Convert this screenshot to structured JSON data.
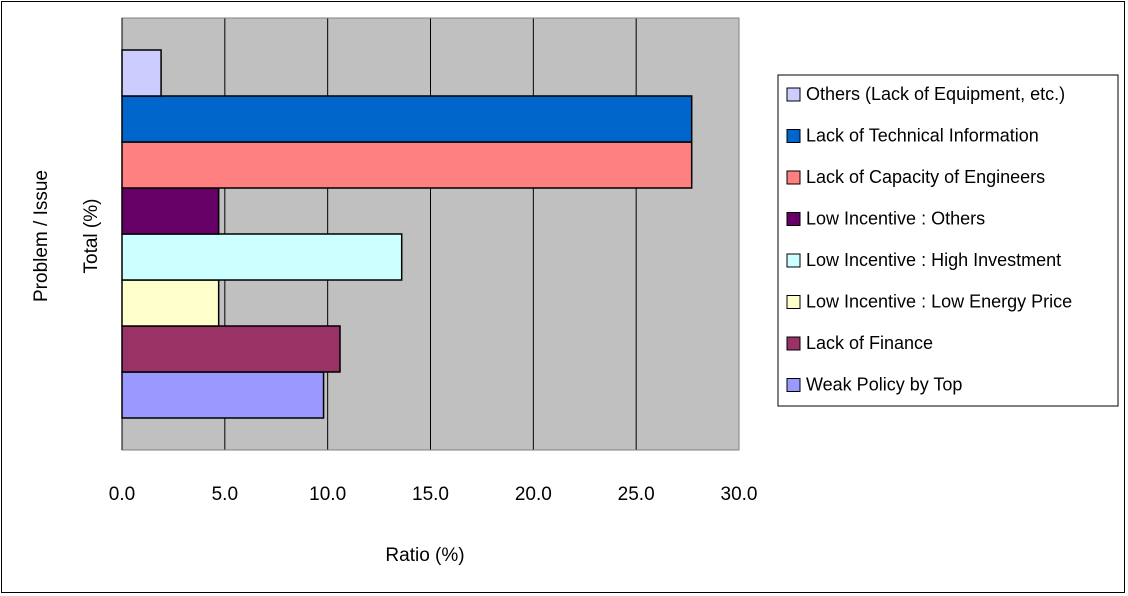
{
  "chart_data": {
    "type": "bar",
    "orientation": "horizontal",
    "categories": [
      "Total (%)"
    ],
    "ylabel": "Problem / Issue",
    "xlabel": "Ratio (%)",
    "xlim": [
      0,
      30
    ],
    "xticks": [
      "0.0",
      "5.0",
      "10.0",
      "15.0",
      "20.0",
      "25.0",
      "30.0"
    ],
    "grid": true,
    "legend_position": "right",
    "series": [
      {
        "name": "Weak Policy by Top",
        "values": [
          9.8
        ],
        "color": "#9999FF"
      },
      {
        "name": " Lack of Finance",
        "values": [
          10.6
        ],
        "color": "#993366"
      },
      {
        "name": "Low Incentive : Low Energy Price",
        "values": [
          4.7
        ],
        "color": "#FFFFCC"
      },
      {
        "name": "Low Incentive : High Investment",
        "values": [
          13.6
        ],
        "color": "#CCFFFF"
      },
      {
        "name": "Low Incentive : Others",
        "values": [
          4.7
        ],
        "color": "#660066"
      },
      {
        "name": "Lack of Capacity of Engineers",
        "values": [
          27.7
        ],
        "color": "#FF8080"
      },
      {
        "name": "Lack of Technical Information",
        "values": [
          27.7
        ],
        "color": "#0066CC"
      },
      {
        "name": "Others (Lack of Equipment, etc.)",
        "values": [
          1.9
        ],
        "color": "#CCCCFF"
      }
    ],
    "plot_background": "#C0C0C0"
  }
}
